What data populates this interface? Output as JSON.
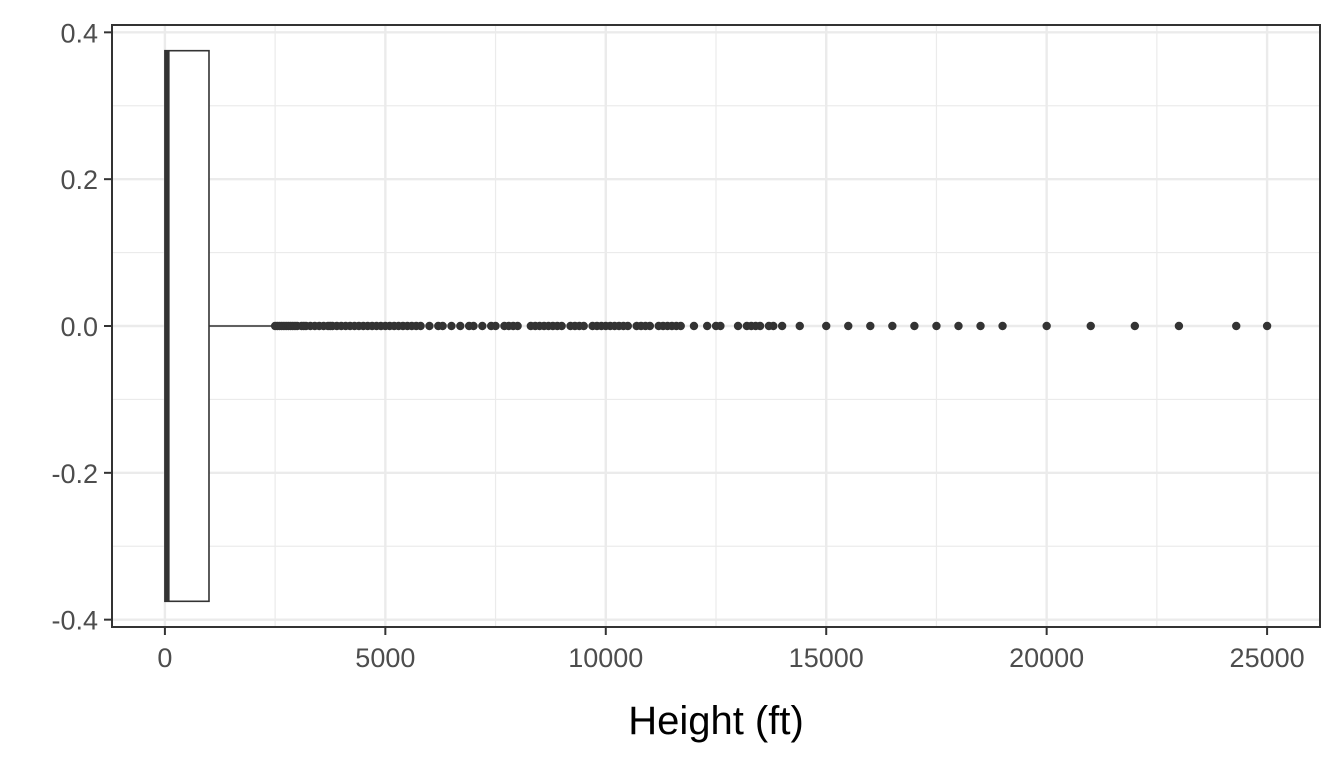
{
  "chart_data": {
    "type": "boxplot",
    "title": "",
    "xlabel": "Height (ft)",
    "ylabel": "",
    "xlim": [
      -1200,
      26200
    ],
    "ylim": [
      -0.41,
      0.41
    ],
    "x_ticks": [
      0,
      5000,
      10000,
      15000,
      20000,
      25000
    ],
    "x_minor_ticks": [
      2500,
      7500,
      12500,
      17500,
      22500
    ],
    "y_ticks": [
      -0.4,
      -0.2,
      0.0,
      0.2,
      0.4
    ],
    "y_tick_labels": [
      "-0.4",
      "-0.2",
      "0.0",
      "0.2",
      "0.4"
    ],
    "y_minor_ticks": [
      -0.3,
      -0.1,
      0.1,
      0.3
    ],
    "grid": true,
    "legend": "none",
    "box": {
      "q1": 0,
      "median": 50,
      "q3": 1000,
      "whisker_low": 0,
      "whisker_high": 2450,
      "y_center": 0.0,
      "y_half_width": 0.375
    },
    "outliers": [
      2500,
      2550,
      2600,
      2650,
      2700,
      2750,
      2800,
      2850,
      2900,
      2950,
      3000,
      3100,
      3150,
      3200,
      3300,
      3400,
      3500,
      3600,
      3700,
      3750,
      3800,
      3900,
      4000,
      4100,
      4200,
      4300,
      4400,
      4500,
      4600,
      4700,
      4800,
      4900,
      5000,
      5100,
      5200,
      5300,
      5400,
      5500,
      5600,
      5700,
      5800,
      6000,
      6200,
      6300,
      6500,
      6700,
      6900,
      7000,
      7200,
      7400,
      7500,
      7700,
      7800,
      7900,
      8000,
      8300,
      8400,
      8500,
      8600,
      8700,
      8800,
      8900,
      9000,
      9200,
      9300,
      9400,
      9500,
      9700,
      9800,
      9900,
      10000,
      10100,
      10200,
      10300,
      10400,
      10500,
      10700,
      10800,
      10900,
      11000,
      11200,
      11300,
      11400,
      11500,
      11600,
      11700,
      12000,
      12300,
      12500,
      12600,
      13000,
      13200,
      13300,
      13400,
      13500,
      13700,
      13800,
      14000,
      14400,
      15000,
      15500,
      16000,
      16500,
      17000,
      17500,
      18000,
      18500,
      19000,
      20000,
      21000,
      22000,
      23000,
      24300,
      25000
    ],
    "colors": {
      "panel_border": "#333333",
      "grid": "#ebebeb",
      "box_line": "#333333",
      "box_fill": "#ffffff",
      "points": "#333333",
      "tick_label": "#4d4d4d",
      "axis_title": "#000000"
    }
  }
}
